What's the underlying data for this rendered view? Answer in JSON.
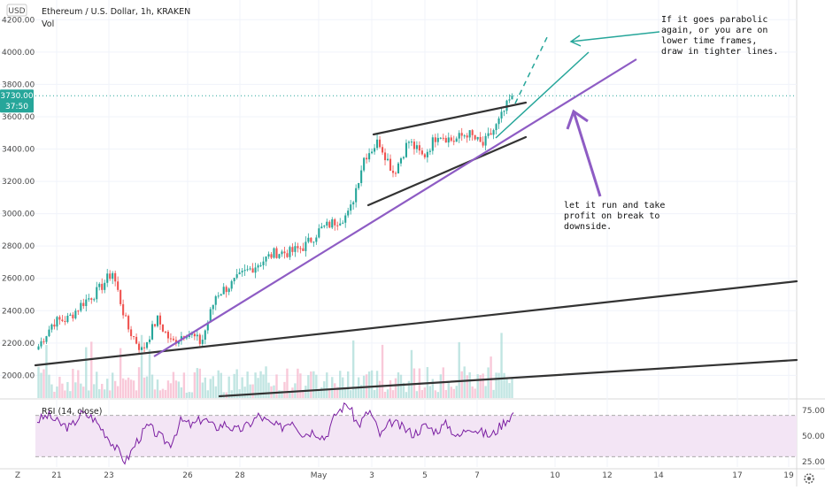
{
  "header": {
    "symbol_title": "Ethereum / U.S. Dollar, 1h, KRAKEN",
    "volume_label": "Vol",
    "currency_label": "USD"
  },
  "price_tag": {
    "value": "3730.00",
    "countdown": "37:50"
  },
  "rsi_legend": "RSI (14, close)",
  "bottom_left_label": "Z",
  "gear_icon": "gear-icon",
  "colors": {
    "up": "#26a69a",
    "down": "#ef5350",
    "rsi_line": "#7b1fa2",
    "rsi_band": "#f3e5f5",
    "trend_purple": "#8e5cc4",
    "trend_teal": "#26a69a",
    "trend_black": "#333333"
  },
  "annotations": {
    "top_note": [
      "If it goes parabolic",
      "again, or you are on",
      "lower time frames,",
      "draw in tighter lines."
    ],
    "bottom_note": [
      "let it run and take",
      "profit on break to",
      "downside."
    ]
  },
  "chart_data": [
    {
      "type": "candlestick",
      "title": "Ethereum / U.S. Dollar, 1h, KRAKEN",
      "x_tick_labels": [
        "21",
        "23",
        "26",
        "28",
        "May",
        "3",
        "5",
        "7",
        "10",
        "12",
        "14",
        "17",
        "19"
      ],
      "y_tick_labels": [
        "2000.00",
        "2200.00",
        "2400.00",
        "2600.00",
        "2800.00",
        "3000.00",
        "3200.00",
        "3400.00",
        "3600.00",
        "3800.00",
        "4000.00",
        "4200.00"
      ],
      "ylim": [
        1860,
        4300
      ],
      "y_scale": "linear",
      "grid": true,
      "last_price": 3730,
      "price_path": [
        {
          "date": "Apr 19",
          "close": 2180
        },
        {
          "date": "Apr 20",
          "close": 2330
        },
        {
          "date": "Apr 21",
          "close": 2350
        },
        {
          "date": "Apr 21",
          "close": 2450
        },
        {
          "date": "Apr 22",
          "close": 2520
        },
        {
          "date": "Apr 22",
          "close": 2640
        },
        {
          "date": "Apr 23",
          "close": 2300
        },
        {
          "date": "Apr 23",
          "close": 2150
        },
        {
          "date": "Apr 24",
          "close": 2350
        },
        {
          "date": "Apr 25",
          "close": 2200
        },
        {
          "date": "Apr 25",
          "close": 2270
        },
        {
          "date": "Apr 26",
          "close": 2200
        },
        {
          "date": "Apr 26",
          "close": 2500
        },
        {
          "date": "Apr 27",
          "close": 2560
        },
        {
          "date": "Apr 28",
          "close": 2640
        },
        {
          "date": "Apr 28",
          "close": 2700
        },
        {
          "date": "Apr 29",
          "close": 2760
        },
        {
          "date": "Apr 30",
          "close": 2760
        },
        {
          "date": "Apr 30",
          "close": 2800
        },
        {
          "date": "May 1",
          "close": 2900
        },
        {
          "date": "May 2",
          "close": 2950
        },
        {
          "date": "May 3",
          "close": 3000
        },
        {
          "date": "May 3",
          "close": 3350
        },
        {
          "date": "May 4",
          "close": 3450
        },
        {
          "date": "May 4",
          "close": 3250
        },
        {
          "date": "May 5",
          "close": 3450
        },
        {
          "date": "May 5",
          "close": 3350
        },
        {
          "date": "May 6",
          "close": 3500
        },
        {
          "date": "May 6",
          "close": 3450
        },
        {
          "date": "May 7",
          "close": 3500
        },
        {
          "date": "May 7",
          "close": 3420
        },
        {
          "date": "May 8",
          "close": 3550
        },
        {
          "date": "May 8",
          "close": 3730
        }
      ],
      "volume_present": true
    },
    {
      "type": "line",
      "title": "RSI (14, close)",
      "y_tick_labels": [
        "75.00",
        "50.00",
        "25.00"
      ],
      "ylim": [
        20,
        80
      ],
      "overbought": 70,
      "oversold": 30,
      "rsi_path": [
        65,
        70,
        62,
        58,
        72,
        68,
        55,
        40,
        25,
        45,
        60,
        50,
        42,
        65,
        60,
        68,
        58,
        62,
        55,
        60,
        70,
        62,
        58,
        66,
        52,
        55,
        48,
        72,
        82,
        60,
        75,
        50,
        64,
        58,
        52,
        60,
        55,
        62,
        48,
        60,
        54,
        50,
        62,
        72
      ]
    }
  ]
}
